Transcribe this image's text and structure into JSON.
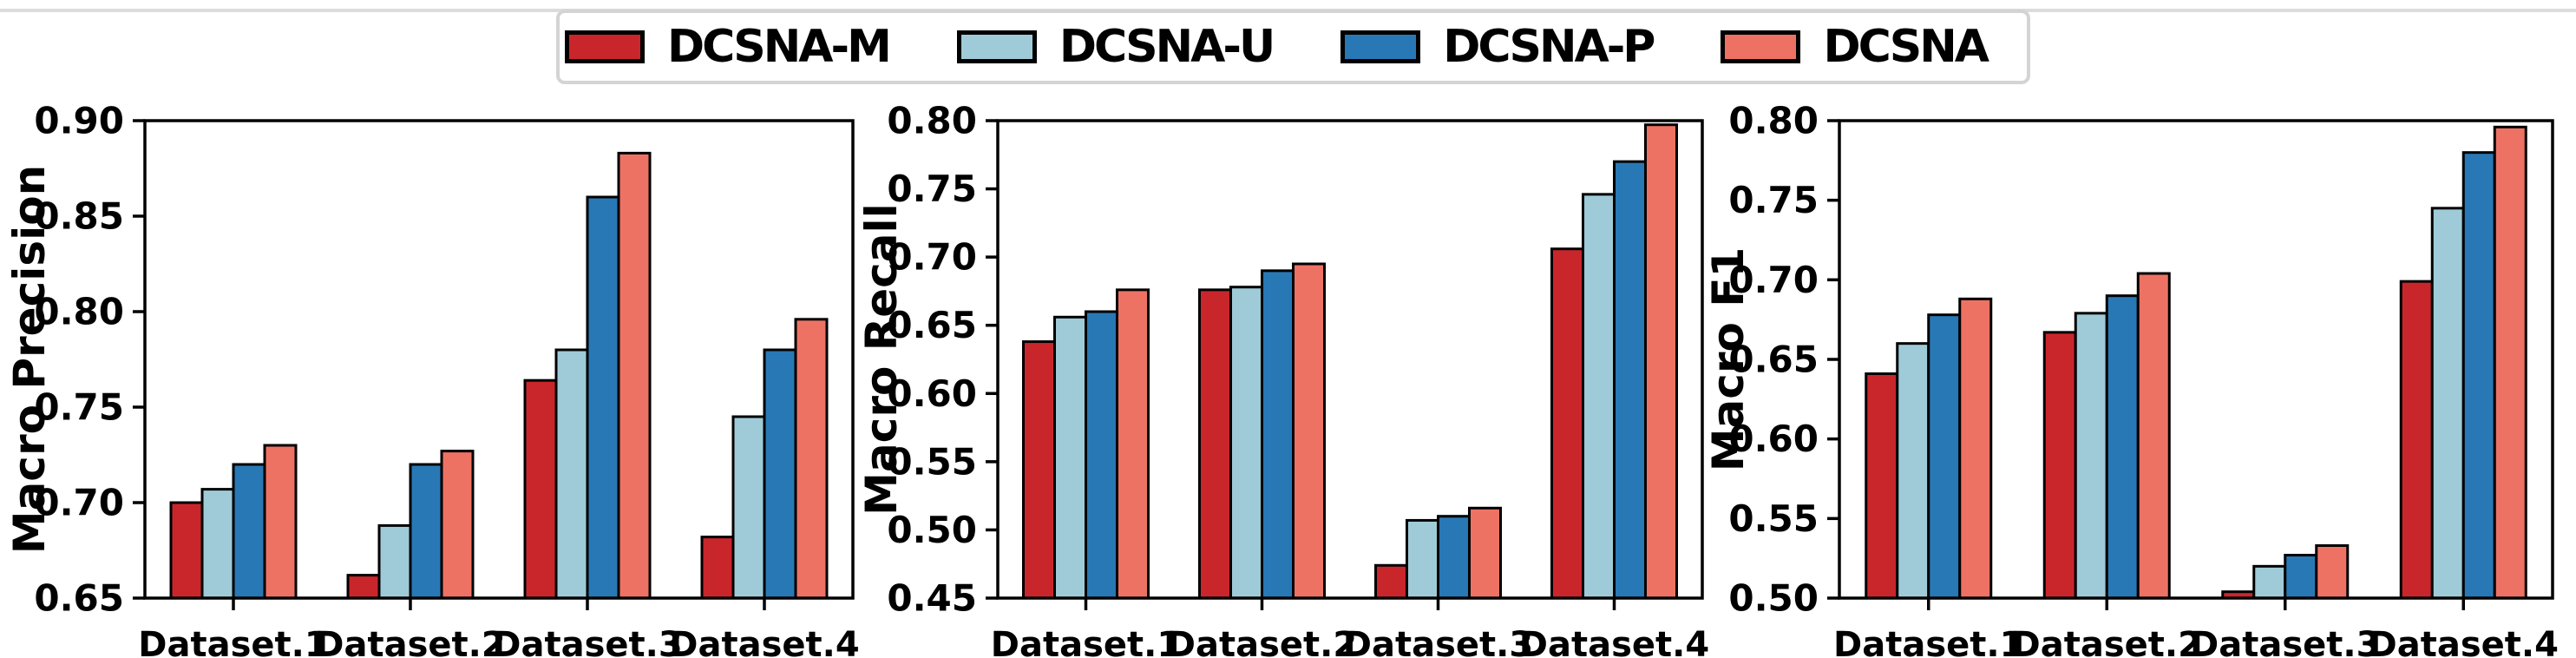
{
  "figure": {
    "background": "#ffffff",
    "top_rule_color": "#dcdcdc"
  },
  "legend": {
    "border_color": "#d4d4d4",
    "items": [
      {
        "label": "DCSNA-M",
        "color": "#c9262c"
      },
      {
        "label": "DCSNA-U",
        "color": "#9fcbd9"
      },
      {
        "label": "DCSNA-P",
        "color": "#2878b5"
      },
      {
        "label": "DCSNA",
        "color": "#ee7264"
      }
    ]
  },
  "chart_data": [
    {
      "type": "bar",
      "title": "",
      "xlabel": "",
      "ylabel": "Macro Precision",
      "ylim": [
        0.65,
        0.9
      ],
      "yticks": [
        0.65,
        0.7,
        0.75,
        0.8,
        0.85,
        0.9
      ],
      "grid": false,
      "legend_position": "figure-top-center",
      "categories": [
        "Dataset.1",
        "Dataset.2",
        "Dataset.3",
        "Dataset.4"
      ],
      "series": [
        {
          "name": "DCSNA-M",
          "color": "#c9262c",
          "values": [
            0.7,
            0.662,
            0.764,
            0.682
          ]
        },
        {
          "name": "DCSNA-U",
          "color": "#9fcbd9",
          "values": [
            0.707,
            0.688,
            0.78,
            0.745
          ]
        },
        {
          "name": "DCSNA-P",
          "color": "#2878b5",
          "values": [
            0.72,
            0.72,
            0.86,
            0.78
          ]
        },
        {
          "name": "DCSNA",
          "color": "#ee7264",
          "values": [
            0.73,
            0.727,
            0.883,
            0.796
          ]
        }
      ]
    },
    {
      "type": "bar",
      "title": "",
      "xlabel": "",
      "ylabel": "Macro Recall",
      "ylim": [
        0.45,
        0.8
      ],
      "yticks": [
        0.45,
        0.5,
        0.55,
        0.6,
        0.65,
        0.7,
        0.75,
        0.8
      ],
      "grid": false,
      "legend_position": "figure-top-center",
      "categories": [
        "Dataset.1",
        "Dataset.2",
        "Dataset.3",
        "Dataset.4"
      ],
      "series": [
        {
          "name": "DCSNA-M",
          "color": "#c9262c",
          "values": [
            0.638,
            0.676,
            0.474,
            0.706
          ]
        },
        {
          "name": "DCSNA-U",
          "color": "#9fcbd9",
          "values": [
            0.656,
            0.678,
            0.507,
            0.746
          ]
        },
        {
          "name": "DCSNA-P",
          "color": "#2878b5",
          "values": [
            0.66,
            0.69,
            0.51,
            0.77
          ]
        },
        {
          "name": "DCSNA",
          "color": "#ee7264",
          "values": [
            0.676,
            0.695,
            0.516,
            0.797
          ]
        }
      ]
    },
    {
      "type": "bar",
      "title": "",
      "xlabel": "",
      "ylabel": "Macro F1",
      "ylim": [
        0.5,
        0.8
      ],
      "yticks": [
        0.5,
        0.55,
        0.6,
        0.65,
        0.7,
        0.75,
        0.8
      ],
      "grid": false,
      "legend_position": "figure-top-center",
      "categories": [
        "Dataset.1",
        "Dataset.2",
        "Dataset.3",
        "Dataset.4"
      ],
      "series": [
        {
          "name": "DCSNA-M",
          "color": "#c9262c",
          "values": [
            0.641,
            0.667,
            0.504,
            0.699
          ]
        },
        {
          "name": "DCSNA-U",
          "color": "#9fcbd9",
          "values": [
            0.66,
            0.679,
            0.52,
            0.745
          ]
        },
        {
          "name": "DCSNA-P",
          "color": "#2878b5",
          "values": [
            0.678,
            0.69,
            0.527,
            0.78
          ]
        },
        {
          "name": "DCSNA",
          "color": "#ee7264",
          "values": [
            0.688,
            0.704,
            0.533,
            0.796
          ]
        }
      ]
    }
  ]
}
